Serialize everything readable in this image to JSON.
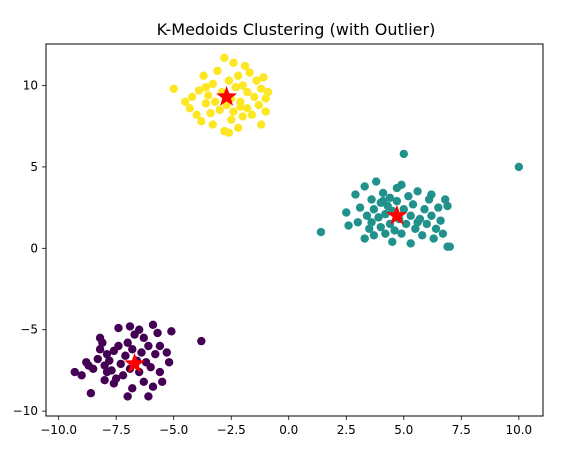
{
  "chart_data": {
    "type": "scatter",
    "title": "K-Medoids Clustering (with Outlier)",
    "xlabel": "",
    "ylabel": "",
    "xlim": [
      -10.55,
      11.05
    ],
    "ylim": [
      -10.3,
      12.55
    ],
    "x_ticks": [
      -10.0,
      -7.5,
      -5.0,
      -2.5,
      0.0,
      2.5,
      5.0,
      7.5,
      10.0
    ],
    "x_tick_labels": [
      "−10.0",
      "−7.5",
      "−5.0",
      "−2.5",
      "0.0",
      "2.5",
      "5.0",
      "7.5",
      "10.0"
    ],
    "y_ticks": [
      -10,
      -5,
      0,
      5,
      10
    ],
    "y_tick_labels": [
      "−10",
      "−5",
      "0",
      "5",
      "10"
    ],
    "grid": false,
    "legend": "none",
    "clusters": [
      {
        "color": "#440154",
        "points": [
          [
            -9.3,
            -7.6
          ],
          [
            -9.0,
            -7.8
          ],
          [
            -8.8,
            -7.0
          ],
          [
            -8.7,
            -7.2
          ],
          [
            -8.5,
            -7.4
          ],
          [
            -8.3,
            -6.8
          ],
          [
            -8.2,
            -5.5
          ],
          [
            -8.1,
            -5.8
          ],
          [
            -8.2,
            -6.2
          ],
          [
            -8.0,
            -7.2
          ],
          [
            -7.9,
            -6.5
          ],
          [
            -7.8,
            -6.9
          ],
          [
            -7.7,
            -7.5
          ],
          [
            -7.6,
            -6.3
          ],
          [
            -7.6,
            -8.3
          ],
          [
            -7.5,
            -8.0
          ],
          [
            -7.4,
            -6.0
          ],
          [
            -7.3,
            -7.1
          ],
          [
            -7.2,
            -7.8
          ],
          [
            -7.1,
            -6.6
          ],
          [
            -7.0,
            -5.8
          ],
          [
            -6.9,
            -7.4
          ],
          [
            -6.8,
            -8.6
          ],
          [
            -6.8,
            -6.2
          ],
          [
            -6.7,
            -5.3
          ],
          [
            -6.6,
            -6.9
          ],
          [
            -6.5,
            -7.6
          ],
          [
            -6.5,
            -5.0
          ],
          [
            -6.4,
            -6.4
          ],
          [
            -6.3,
            -8.2
          ],
          [
            -6.3,
            -5.5
          ],
          [
            -6.2,
            -7.0
          ],
          [
            -6.1,
            -6.0
          ],
          [
            -6.1,
            -9.1
          ],
          [
            -6.0,
            -7.3
          ],
          [
            -5.9,
            -4.7
          ],
          [
            -5.9,
            -8.5
          ],
          [
            -5.8,
            -6.5
          ],
          [
            -5.7,
            -5.2
          ],
          [
            -5.6,
            -7.6
          ],
          [
            -5.6,
            -6.0
          ],
          [
            -5.5,
            -8.2
          ],
          [
            -5.3,
            -6.4
          ],
          [
            -5.2,
            -7.0
          ],
          [
            -5.1,
            -5.1
          ],
          [
            -8.6,
            -8.9
          ],
          [
            -7.0,
            -9.1
          ],
          [
            -7.4,
            -4.9
          ],
          [
            -3.8,
            -5.7
          ],
          [
            -8.0,
            -8.1
          ],
          [
            -6.9,
            -4.8
          ],
          [
            -7.9,
            -7.6
          ]
        ]
      },
      {
        "color": "#21918c",
        "points": [
          [
            1.4,
            1.0
          ],
          [
            2.5,
            2.2
          ],
          [
            2.6,
            1.4
          ],
          [
            2.9,
            3.3
          ],
          [
            3.0,
            1.6
          ],
          [
            3.1,
            2.5
          ],
          [
            3.3,
            3.8
          ],
          [
            3.3,
            0.6
          ],
          [
            3.4,
            2.0
          ],
          [
            3.5,
            1.2
          ],
          [
            3.6,
            3.0
          ],
          [
            3.7,
            2.4
          ],
          [
            3.7,
            0.8
          ],
          [
            3.8,
            4.1
          ],
          [
            3.9,
            1.9
          ],
          [
            4.0,
            2.8
          ],
          [
            4.0,
            1.3
          ],
          [
            4.1,
            3.4
          ],
          [
            4.2,
            2.1
          ],
          [
            4.2,
            0.9
          ],
          [
            4.3,
            2.6
          ],
          [
            4.4,
            1.5
          ],
          [
            4.4,
            3.1
          ],
          [
            4.5,
            0.4
          ],
          [
            4.5,
            2.3
          ],
          [
            4.6,
            1.1
          ],
          [
            4.7,
            2.9
          ],
          [
            4.7,
            3.7
          ],
          [
            4.8,
            1.8
          ],
          [
            4.9,
            3.9
          ],
          [
            4.9,
            0.9
          ],
          [
            5.0,
            2.4
          ],
          [
            5.0,
            5.8
          ],
          [
            5.1,
            1.5
          ],
          [
            5.2,
            3.2
          ],
          [
            5.3,
            0.3
          ],
          [
            5.3,
            2.0
          ],
          [
            5.4,
            2.7
          ],
          [
            5.5,
            1.2
          ],
          [
            5.6,
            3.5
          ],
          [
            5.7,
            1.8
          ],
          [
            5.8,
            0.8
          ],
          [
            5.9,
            2.4
          ],
          [
            6.0,
            1.5
          ],
          [
            6.1,
            3.0
          ],
          [
            6.2,
            2.0
          ],
          [
            6.3,
            0.6
          ],
          [
            6.4,
            1.2
          ],
          [
            6.5,
            2.5
          ],
          [
            6.6,
            1.7
          ],
          [
            6.7,
            0.9
          ],
          [
            6.8,
            3.0
          ],
          [
            6.9,
            2.6
          ],
          [
            6.9,
            0.1
          ],
          [
            7.0,
            0.1
          ],
          [
            6.2,
            3.3
          ],
          [
            5.6,
            1.6
          ],
          [
            4.1,
            2.9
          ],
          [
            3.6,
            1.6
          ],
          [
            10.0,
            5.0
          ]
        ]
      },
      {
        "color": "#fde725",
        "points": [
          [
            -5.0,
            9.8
          ],
          [
            -4.5,
            9.0
          ],
          [
            -4.3,
            8.6
          ],
          [
            -4.2,
            9.3
          ],
          [
            -4.0,
            8.2
          ],
          [
            -3.9,
            9.7
          ],
          [
            -3.8,
            7.8
          ],
          [
            -3.7,
            10.6
          ],
          [
            -3.6,
            8.9
          ],
          [
            -3.5,
            9.4
          ],
          [
            -3.4,
            8.3
          ],
          [
            -3.3,
            10.1
          ],
          [
            -3.3,
            7.6
          ],
          [
            -3.2,
            9.0
          ],
          [
            -3.1,
            10.9
          ],
          [
            -3.0,
            8.5
          ],
          [
            -2.9,
            9.6
          ],
          [
            -2.8,
            7.2
          ],
          [
            -2.8,
            11.7
          ],
          [
            -2.7,
            8.8
          ],
          [
            -2.6,
            10.3
          ],
          [
            -2.5,
            9.2
          ],
          [
            -2.5,
            7.9
          ],
          [
            -2.4,
            11.4
          ],
          [
            -2.4,
            8.4
          ],
          [
            -2.3,
            9.9
          ],
          [
            -2.2,
            10.6
          ],
          [
            -2.2,
            7.4
          ],
          [
            -2.1,
            9.0
          ],
          [
            -2.0,
            8.1
          ],
          [
            -2.0,
            10.0
          ],
          [
            -1.9,
            11.2
          ],
          [
            -1.8,
            8.6
          ],
          [
            -1.8,
            9.6
          ],
          [
            -1.7,
            10.8
          ],
          [
            -1.6,
            8.2
          ],
          [
            -1.5,
            9.3
          ],
          [
            -1.4,
            10.3
          ],
          [
            -1.3,
            8.8
          ],
          [
            -1.2,
            7.6
          ],
          [
            -1.2,
            9.8
          ],
          [
            -1.1,
            10.5
          ],
          [
            -1.0,
            8.4
          ],
          [
            -1.0,
            9.2
          ],
          [
            -0.9,
            9.6
          ],
          [
            -2.6,
            7.1
          ],
          [
            -3.6,
            9.9
          ],
          [
            -2.1,
            8.7
          ]
        ]
      }
    ],
    "medoids": {
      "color": "#ff0000",
      "marker": "star",
      "points": [
        [
          -6.7,
          -7.1
        ],
        [
          4.7,
          2.0
        ],
        [
          -2.7,
          9.3
        ]
      ]
    }
  }
}
